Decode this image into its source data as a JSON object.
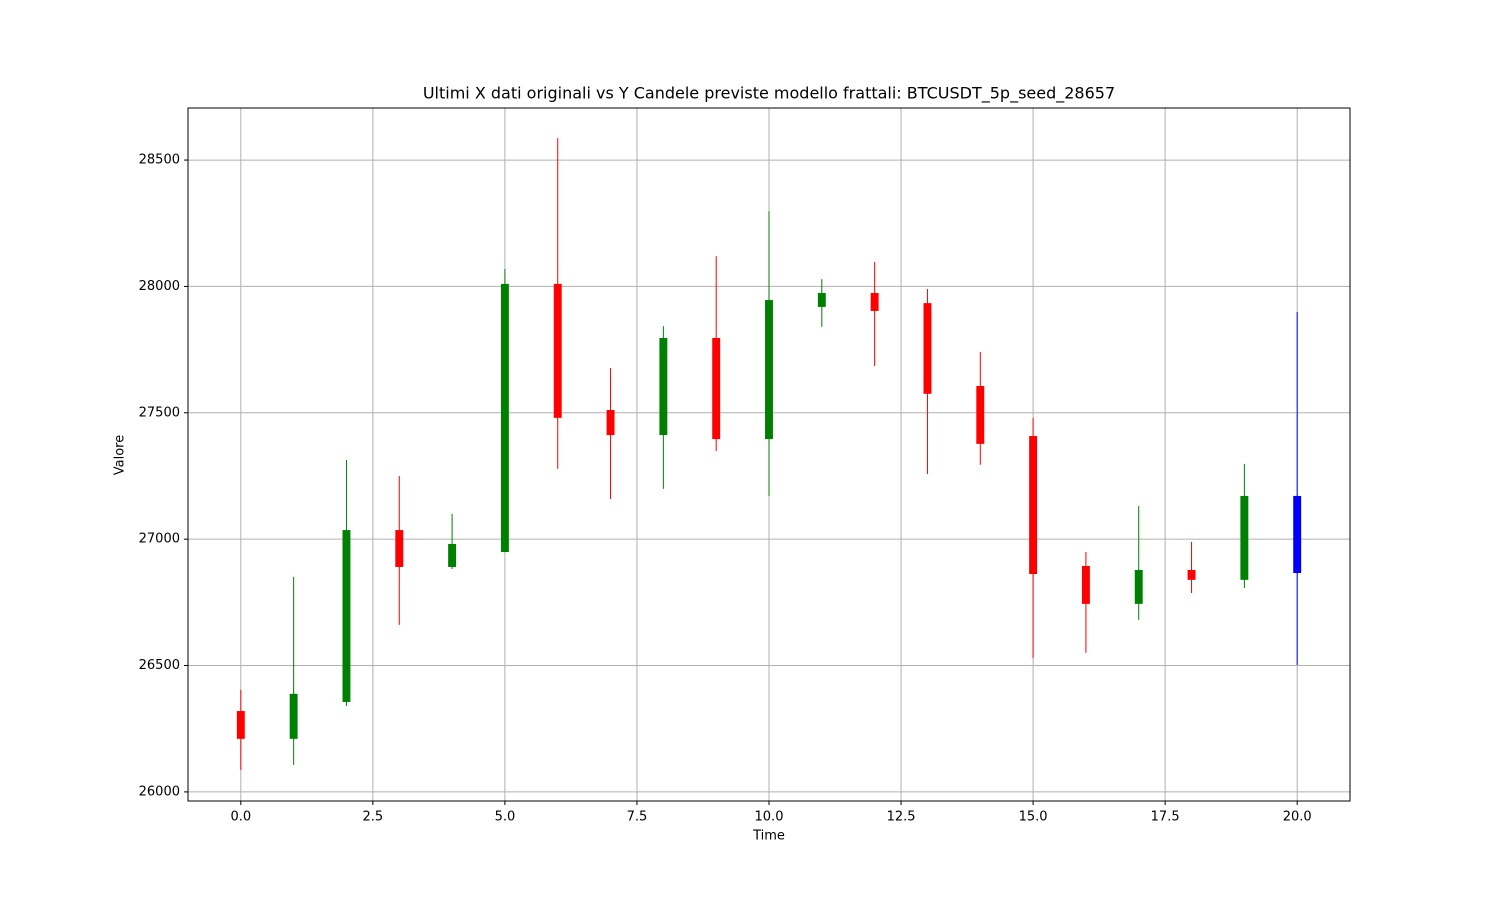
{
  "chart_data": {
    "type": "candlestick",
    "title": "Ultimi X dati originali vs Y Candele previste modello frattali: BTCUSDT_5p_seed_28657",
    "x_label": "Time",
    "y_label": "Valore",
    "x": [
      0,
      1,
      2,
      3,
      4,
      5,
      6,
      7,
      8,
      9,
      10,
      11,
      12,
      13,
      14,
      15,
      16,
      17,
      18,
      19,
      20
    ],
    "open": [
      26320,
      26210,
      26356,
      27036,
      26890,
      26949,
      28010,
      27511,
      27412,
      27796,
      27396,
      27919,
      27974,
      27934,
      27606,
      27408,
      26894,
      26744,
      26878,
      26839,
      26866
    ],
    "high": [
      26404,
      26851,
      27313,
      27250,
      27100,
      28069,
      28587,
      27677,
      27843,
      28120,
      28298,
      28029,
      28097,
      27990,
      27741,
      27480,
      26949,
      27131,
      26989,
      27298,
      27899
    ],
    "low": [
      26087,
      26107,
      26340,
      26661,
      26882,
      26949,
      27278,
      27159,
      27199,
      27349,
      27171,
      27840,
      27685,
      27258,
      27294,
      26530,
      26550,
      26680,
      26787,
      26807,
      26502
    ],
    "close": [
      26210,
      26388,
      27036,
      26890,
      26981,
      28010,
      27480,
      27412,
      27796,
      27396,
      27946,
      27974,
      27903,
      27575,
      27377,
      26862,
      26744,
      26878,
      26839,
      27171,
      27171
    ],
    "colors": [
      "red",
      "green",
      "green",
      "red",
      "green",
      "green",
      "red",
      "red",
      "green",
      "red",
      "green",
      "green",
      "red",
      "red",
      "red",
      "red",
      "red",
      "green",
      "red",
      "green",
      "blue"
    ],
    "xlim": [
      -1,
      21
    ],
    "ylim": [
      25964,
      28706
    ],
    "xticks": [
      {
        "value": 0,
        "label": "0.0"
      },
      {
        "value": 2.5,
        "label": "2.5"
      },
      {
        "value": 5,
        "label": "5.0"
      },
      {
        "value": 7.5,
        "label": "7.5"
      },
      {
        "value": 10,
        "label": "10.0"
      },
      {
        "value": 12.5,
        "label": "12.5"
      },
      {
        "value": 15,
        "label": "15.0"
      },
      {
        "value": 17.5,
        "label": "17.5"
      },
      {
        "value": 20,
        "label": "20.0"
      }
    ],
    "yticks": [
      26000,
      26500,
      27000,
      27500,
      28000,
      28500
    ],
    "grid": true
  }
}
